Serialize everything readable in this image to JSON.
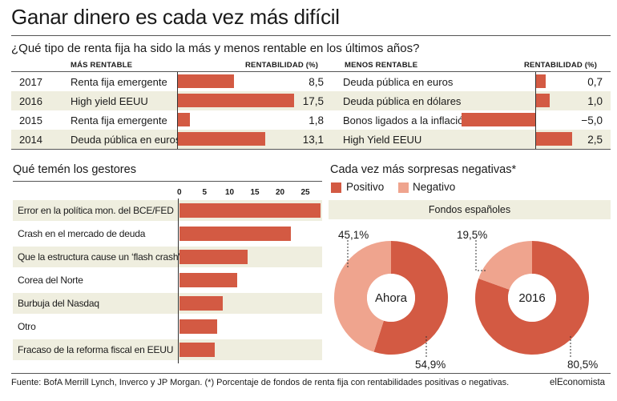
{
  "title": "Ganar dinero es cada vez más difícil",
  "subtitle": "¿Qué tipo de renta fija ha sido la más y menos rentable en los últimos años?",
  "footer": "Fuente: BofA Merrill Lynch, Inverco y JP Morgan. (*) Porcentaje de fondos de renta fija con rentabilidades positivas o negativas.",
  "brand": "elEconomista",
  "colors": {
    "bar": "#d35a43",
    "positive": "#d35a43",
    "negative": "#efa48e",
    "shade": "#efeedf"
  },
  "chart_data": [
    {
      "type": "bar",
      "orientation": "horizontal",
      "header_label": "MÁS RENTABLE",
      "value_header": "RENTABILIDAD (%)",
      "rows": [
        {
          "year": "2017",
          "label": "Renta fija emergente",
          "value": 8.5,
          "value_text": "8,5"
        },
        {
          "year": "2016",
          "label": "High yield EEUU",
          "value": 17.5,
          "value_text": "17,5"
        },
        {
          "year": "2015",
          "label": "Renta fija emergente",
          "value": 1.8,
          "value_text": "1,8"
        },
        {
          "year": "2014",
          "label": "Deuda pública en euros",
          "value": 13.1,
          "value_text": "13,1"
        }
      ]
    },
    {
      "type": "bar",
      "orientation": "horizontal",
      "header_label": "MENOS RENTABLE",
      "value_header": "RENTABILIDAD (%)",
      "rows": [
        {
          "label": "Deuda pública en euros",
          "value": 0.7,
          "value_text": "0,7"
        },
        {
          "label": "Deuda pública en dólares",
          "value": 1.0,
          "value_text": "1,0"
        },
        {
          "label": "Bonos ligados a la inflación",
          "value": -5.0,
          "value_text": "−5,0"
        },
        {
          "label": "High Yield EEUU",
          "value": 2.5,
          "value_text": "2,5"
        }
      ]
    },
    {
      "type": "bar",
      "orientation": "horizontal",
      "title": "Qué temén los gestores",
      "xticks": [
        "0",
        "5",
        "10",
        "15",
        "20",
        "25"
      ],
      "xlim": [
        0,
        28
      ],
      "categories": [
        "Error en la política mon. del BCE/FED",
        "Crash en el mercado de deuda",
        "Que la estructura  cause un ‘flash crash’",
        "Corea del Norte",
        "Burbuja del Nasdaq",
        "Otro",
        "Fracaso de la reforma fiscal en EEUU"
      ],
      "values": [
        28,
        22,
        13.5,
        11.5,
        8.5,
        7.5,
        7
      ]
    },
    {
      "type": "pie",
      "title": "Cada vez más sorpresas negativas*",
      "panel_label": "Fondos españoles",
      "legend": [
        "Positivo",
        "Negativo"
      ],
      "charts": [
        {
          "center_label": "Ahora",
          "positive": 54.9,
          "negative": 45.1,
          "positive_text": "54,9%",
          "negative_text": "45,1%"
        },
        {
          "center_label": "2016",
          "positive": 80.5,
          "negative": 19.5,
          "positive_text": "80,5%",
          "negative_text": "19,5%"
        }
      ]
    }
  ]
}
